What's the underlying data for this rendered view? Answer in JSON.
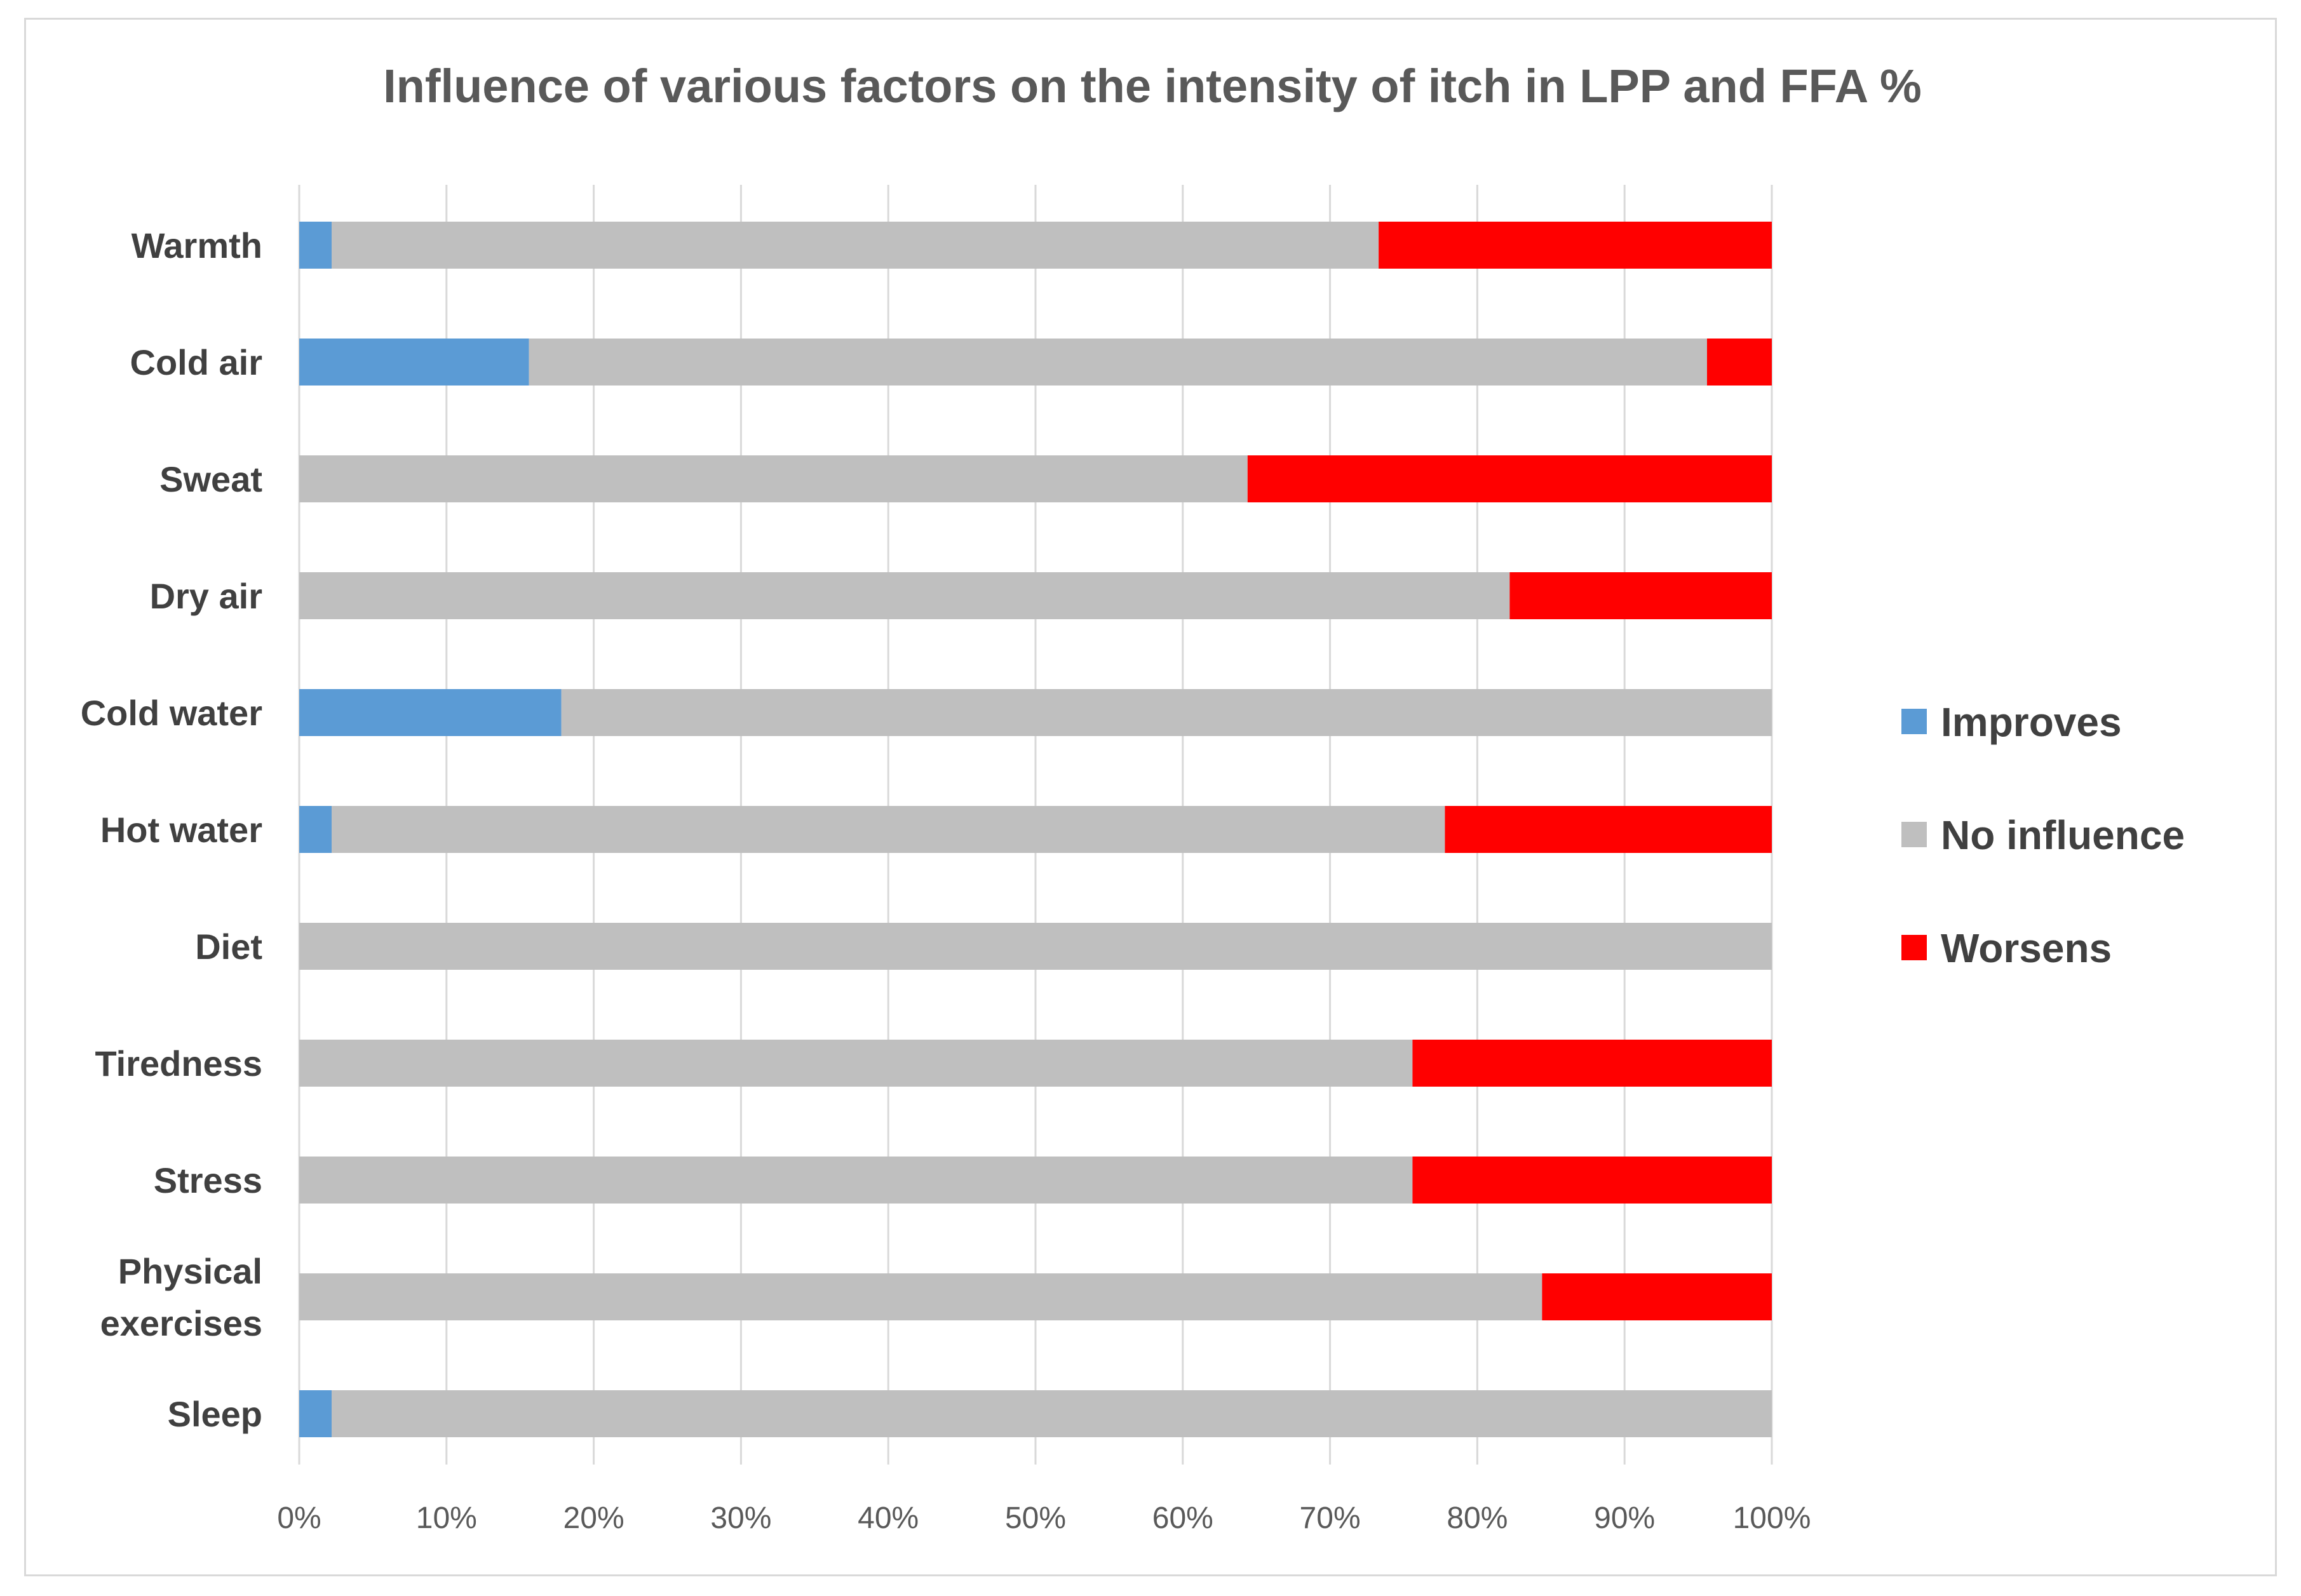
{
  "chart_data": {
    "type": "bar",
    "orientation": "horizontal",
    "stacked": "percent",
    "title": "Influence of various factors on the intensity of itch in LPP and FFA %",
    "xlabel": "",
    "ylabel": "",
    "xlim": [
      0,
      100
    ],
    "x_tick_values": [
      0,
      10,
      20,
      30,
      40,
      50,
      60,
      70,
      80,
      90,
      100
    ],
    "x_tick_labels": [
      "0%",
      "10%",
      "20%",
      "30%",
      "40%",
      "50%",
      "60%",
      "70%",
      "80%",
      "90%",
      "100%"
    ],
    "grid": true,
    "legend_position": "right",
    "categories": [
      [
        "Warmth"
      ],
      [
        "Cold air"
      ],
      [
        "Sweat"
      ],
      [
        "Dry air"
      ],
      [
        "Cold water"
      ],
      [
        "Hot water"
      ],
      [
        "Diet"
      ],
      [
        "Tiredness"
      ],
      [
        "Stress"
      ],
      [
        "Physical",
        "exercises"
      ],
      [
        "Sleep"
      ]
    ],
    "series": [
      {
        "name": "Improves",
        "color": "#5b9bd5",
        "values": [
          2.2,
          15.6,
          0,
          0,
          17.8,
          2.2,
          0,
          0,
          0,
          0,
          2.2
        ]
      },
      {
        "name": "No influence",
        "color": "#bfbfbf",
        "values": [
          71.1,
          80.0,
          64.4,
          82.2,
          82.2,
          75.6,
          100,
          75.6,
          75.6,
          84.4,
          97.8
        ]
      },
      {
        "name": "Worsens",
        "color": "#ff0000",
        "values": [
          26.7,
          4.4,
          35.6,
          17.8,
          0,
          22.2,
          0,
          24.4,
          24.4,
          15.6,
          0
        ]
      }
    ]
  }
}
